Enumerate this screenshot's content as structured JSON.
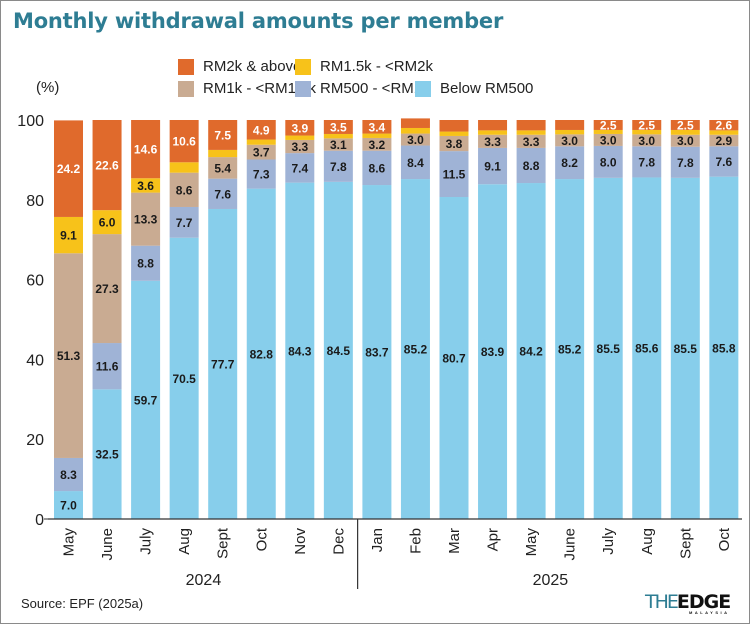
{
  "chart_data": {
    "type": "bar",
    "stacked": true,
    "title": "Monthly withdrawal amounts per member",
    "ylabel": "(%)",
    "xlabel": "",
    "ylim": [
      0,
      100
    ],
    "yticks": [
      0,
      20,
      40,
      60,
      80,
      100
    ],
    "grid": false,
    "legend_position": "top-right",
    "categories": [
      "May",
      "June",
      "July",
      "Aug",
      "Sept",
      "Oct",
      "Nov",
      "Dec",
      "Jan",
      "Feb",
      "Mar",
      "Apr",
      "May",
      "June",
      "July",
      "Aug",
      "Sept",
      "Oct"
    ],
    "year_groups": [
      {
        "label": "2024",
        "count": 8
      },
      {
        "label": "2025",
        "count": 10
      }
    ],
    "series": [
      {
        "name": "Below RM500",
        "color": "#87ceeb",
        "label_color": "#1a1a1a",
        "values": [
          7.0,
          32.5,
          59.7,
          70.5,
          77.7,
          82.8,
          84.3,
          84.5,
          83.7,
          85.2,
          80.7,
          83.9,
          84.2,
          85.2,
          85.5,
          85.6,
          85.5,
          85.8
        ]
      },
      {
        "name": "RM500 - <RM1k",
        "color": "#9fb3d6",
        "label_color": "#1a1a1a",
        "values": [
          8.3,
          11.6,
          8.8,
          7.7,
          7.6,
          7.3,
          7.4,
          7.8,
          8.6,
          8.4,
          11.5,
          9.1,
          8.8,
          8.2,
          8.0,
          7.8,
          7.8,
          7.6
        ]
      },
      {
        "name": "RM1k - <RM1.5k",
        "color": "#c9ab92",
        "label_color": "#1a1a1a",
        "values": [
          51.3,
          27.3,
          13.3,
          8.6,
          5.4,
          3.7,
          3.3,
          3.1,
          3.2,
          3.0,
          3.8,
          3.3,
          3.3,
          3.0,
          3.0,
          3.0,
          3.0,
          2.9
        ]
      },
      {
        "name": "RM1.5k - <RM2k",
        "color": "#f7c21a",
        "label_color": "#1a1a1a",
        "values": [
          9.1,
          6.0,
          3.6,
          null,
          null,
          null,
          null,
          null,
          null,
          null,
          null,
          null,
          null,
          null,
          null,
          null,
          null,
          null
        ],
        "implied_values": [
          9.1,
          6.0,
          3.6,
          2.6,
          1.8,
          1.3,
          1.1,
          1.1,
          1.1,
          1.4,
          1.1,
          1.1,
          1.1,
          1.1,
          1.0,
          1.1,
          1.2,
          1.1
        ]
      },
      {
        "name": "RM2k & above",
        "color": "#e06a2c",
        "label_color": "#ffffff",
        "values": [
          24.2,
          22.6,
          14.6,
          10.6,
          7.5,
          4.9,
          3.9,
          3.5,
          3.4,
          null,
          null,
          null,
          null,
          null,
          2.5,
          2.5,
          2.5,
          2.6
        ],
        "implied_values": [
          24.2,
          22.6,
          14.6,
          10.6,
          7.5,
          4.9,
          3.9,
          3.5,
          3.4,
          2.4,
          2.9,
          2.6,
          2.6,
          2.5,
          2.5,
          2.5,
          2.5,
          2.6
        ]
      }
    ]
  },
  "legend": [
    {
      "label": "RM2k & above",
      "color": "#e06a2c"
    },
    {
      "label": "RM1.5k - <RM2k",
      "color": "#f7c21a"
    },
    {
      "label": "RM1k - <RM1.5k",
      "color": "#c9ab92"
    },
    {
      "label": "RM500 - <RM1k",
      "color": "#9fb3d6"
    },
    {
      "label": "Below RM500",
      "color": "#87ceeb"
    }
  ],
  "source": "Source: EPF (2025a)",
  "logo": {
    "the": "THE",
    "edge": "EDGE",
    "sub": "MALAYSIA"
  },
  "colors": {
    "title": "#2e7d93",
    "axis": "#333333"
  }
}
